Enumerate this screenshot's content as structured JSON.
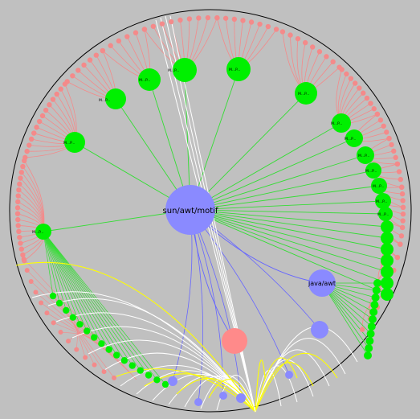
{
  "colors": {
    "background": "#c0c0c0",
    "boundary": "#000000",
    "leaf_node": "#f48a8a",
    "leaf_edge": "#f48a8a",
    "mid_node": "#00f000",
    "mid_edge": "#33dd33",
    "package_node": "#8a8aff",
    "package_edge": "#6666ff",
    "hub_node": "#ff8a8a",
    "dependency_white": "#ffffff",
    "dependency_yellow": "#ffff00"
  },
  "nodes": {
    "root_label": "sun/awt/motif",
    "package_label": "java/awt",
    "mid_labels": [
      "M...P...",
      "M...P...",
      "M...P...",
      "M...P...",
      "M...P...",
      "M...P...",
      "M...P...",
      "M...P...",
      "M...P...",
      "M...P...",
      "M...P...",
      "M...P...",
      "M...P...",
      "M...P..."
    ]
  }
}
